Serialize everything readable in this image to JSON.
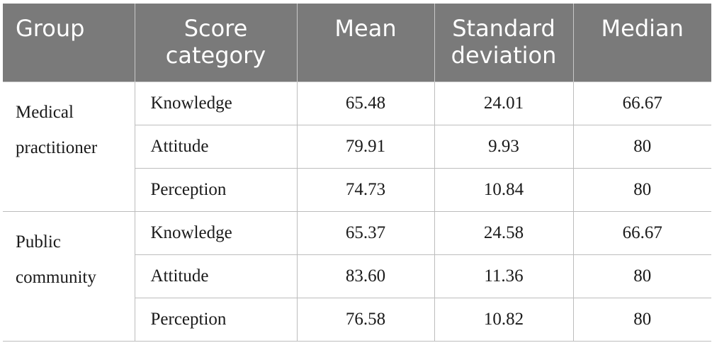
{
  "table": {
    "headers": {
      "group": "Group",
      "score_category_line1": "Score",
      "score_category_line2": "category",
      "mean": "Mean",
      "sd_line1": "Standard",
      "sd_line2": "deviation",
      "median": "Median"
    },
    "groups": [
      {
        "name_line1": "Medical",
        "name_line2": "practitioner",
        "rows": [
          {
            "category": "Knowledge",
            "mean": "65.48",
            "sd": "24.01",
            "median": "66.67"
          },
          {
            "category": "Attitude",
            "mean": "79.91",
            "sd": "9.93",
            "median": "80"
          },
          {
            "category": "Perception",
            "mean": "74.73",
            "sd": "10.84",
            "median": "80"
          }
        ]
      },
      {
        "name_line1": "Public",
        "name_line2": "community",
        "rows": [
          {
            "category": "Knowledge",
            "mean": "65.37",
            "sd": "24.58",
            "median": "66.67"
          },
          {
            "category": "Attitude",
            "mean": "83.60",
            "sd": "11.36",
            "median": "80"
          },
          {
            "category": "Perception",
            "mean": "76.58",
            "sd": "10.82",
            "median": "80"
          }
        ]
      }
    ],
    "colors": {
      "header_bg": "#7a7a7a",
      "header_text": "#ffffff",
      "border": "#bdbdbd"
    }
  }
}
